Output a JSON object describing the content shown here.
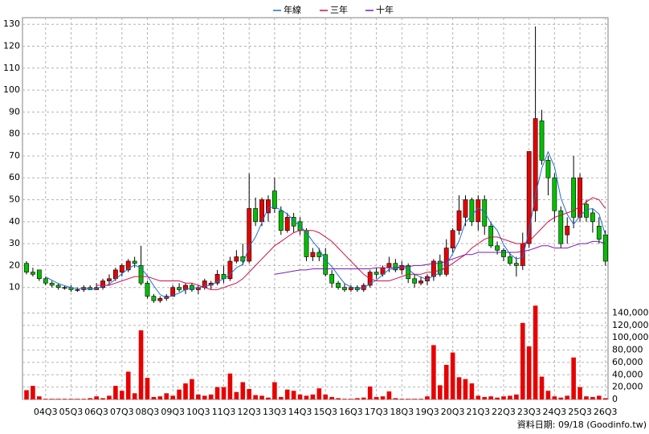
{
  "chart_data": {
    "type": "candlestick",
    "categories": [
      null,
      null,
      null,
      "04Q3",
      null,
      null,
      null,
      "05Q3",
      null,
      null,
      null,
      "06Q3",
      null,
      null,
      null,
      "07Q3",
      null,
      null,
      null,
      "08Q3",
      null,
      null,
      null,
      "09Q3",
      null,
      null,
      null,
      "10Q3",
      null,
      null,
      null,
      "11Q3",
      null,
      null,
      null,
      "12Q3",
      null,
      null,
      null,
      "13Q3",
      null,
      null,
      null,
      "14Q3",
      null,
      null,
      null,
      "15Q3",
      null,
      null,
      null,
      "16Q3",
      null,
      null,
      null,
      "17Q3",
      null,
      null,
      null,
      "18Q3",
      null,
      null,
      null,
      "19Q3",
      null,
      null,
      null,
      "20Q3",
      null,
      null,
      null,
      "21Q3",
      null,
      null,
      null,
      "22Q3",
      null,
      null,
      null,
      "23Q3",
      null,
      null,
      null,
      "24Q3",
      null,
      null,
      null,
      "25Q3",
      null,
      null,
      null,
      "26Q3"
    ],
    "open": [
      21,
      17,
      18,
      14,
      12,
      11,
      10,
      10,
      9,
      9,
      10,
      9,
      10,
      13,
      14,
      17,
      18,
      22,
      20,
      12,
      6,
      4,
      5,
      6,
      10,
      9,
      11,
      9,
      10,
      11,
      12,
      16,
      14,
      22,
      24,
      22,
      46,
      40,
      44,
      54,
      45,
      36,
      42,
      40,
      36,
      24,
      26,
      25,
      16,
      12,
      10,
      9,
      10,
      9,
      11,
      17,
      16,
      19,
      21,
      18,
      20,
      14,
      12,
      13,
      15,
      22,
      16,
      28,
      36,
      42,
      50,
      40,
      50,
      38,
      29,
      27,
      24,
      21,
      20,
      30,
      45,
      86,
      68,
      60,
      45,
      34,
      60,
      42,
      48,
      44,
      38,
      34
    ],
    "high": [
      22,
      19,
      18,
      15,
      13,
      12,
      11,
      11,
      10,
      11,
      11,
      12,
      14,
      16,
      19,
      21,
      23,
      24,
      29,
      13,
      7,
      6,
      7,
      11,
      12,
      12,
      12,
      11,
      14,
      13,
      18,
      20,
      24,
      27,
      30,
      62,
      51,
      51,
      52,
      60,
      47,
      44,
      44,
      42,
      37,
      28,
      28,
      28,
      18,
      13,
      12,
      11,
      11,
      12,
      18,
      19,
      20,
      24,
      23,
      22,
      21,
      16,
      15,
      16,
      23,
      25,
      32,
      37,
      52,
      52,
      51,
      52,
      52,
      40,
      31,
      28,
      26,
      24,
      35,
      72,
      129,
      91,
      70,
      62,
      47,
      42,
      70,
      62,
      50,
      46,
      42,
      36
    ],
    "low": [
      16,
      15,
      13,
      11,
      10,
      9,
      9,
      8,
      8,
      8,
      9,
      9,
      9,
      11,
      13,
      15,
      17,
      19,
      11,
      5,
      3,
      3,
      4,
      6,
      8,
      7,
      8,
      7,
      9,
      9,
      11,
      12,
      13,
      21,
      20,
      21,
      38,
      38,
      40,
      44,
      34,
      35,
      35,
      34,
      22,
      22,
      22,
      15,
      10,
      9,
      8,
      8,
      8,
      8,
      10,
      14,
      15,
      17,
      17,
      16,
      12,
      10,
      11,
      11,
      13,
      15,
      15,
      26,
      34,
      38,
      38,
      36,
      34,
      28,
      25,
      22,
      20,
      15,
      18,
      28,
      40,
      66,
      52,
      40,
      28,
      30,
      37,
      40,
      40,
      35,
      30,
      20
    ],
    "close": [
      17,
      16,
      14,
      12,
      11,
      10,
      10,
      9,
      9,
      10,
      9,
      10,
      13,
      14,
      18,
      20,
      22,
      21,
      12,
      6,
      4,
      5,
      6,
      10,
      9,
      11,
      9,
      10,
      13,
      12,
      16,
      14,
      22,
      24,
      22,
      46,
      40,
      50,
      50,
      46,
      36,
      42,
      38,
      36,
      24,
      26,
      24,
      16,
      12,
      10,
      9,
      10,
      9,
      11,
      17,
      16,
      19,
      21,
      18,
      20,
      14,
      12,
      13,
      15,
      22,
      16,
      28,
      36,
      45,
      50,
      40,
      50,
      38,
      29,
      27,
      24,
      21,
      20,
      30,
      72,
      87,
      68,
      60,
      45,
      30,
      38,
      42,
      60,
      42,
      40,
      32,
      22
    ],
    "up_color": "#e80000",
    "down_color": "#00c000",
    "ylim": [
      0,
      133
    ],
    "yticks": [
      10,
      20,
      30,
      40,
      50,
      60,
      70,
      80,
      90,
      100,
      110,
      120,
      130
    ],
    "grid": true,
    "series": [
      {
        "name": "年線",
        "color": "#1e6fd6",
        "values": [
          null,
          null,
          null,
          14.8,
          13.3,
          11.8,
          10.8,
          10,
          9.5,
          9.5,
          9.3,
          9.5,
          10.5,
          11.5,
          13.8,
          16.3,
          18.5,
          20.3,
          18.8,
          15.3,
          10.8,
          6.8,
          5.3,
          6.3,
          7.5,
          9,
          9.8,
          9.8,
          10.8,
          11,
          12.8,
          13.8,
          16,
          19,
          20.5,
          28.5,
          33,
          39.5,
          46.5,
          46.5,
          45.5,
          43.5,
          40.5,
          38,
          35,
          31,
          27.5,
          22.5,
          19.5,
          15.5,
          11.8,
          10.3,
          9.5,
          9.8,
          11.8,
          13.3,
          15.8,
          18.3,
          18.5,
          19.5,
          18.3,
          16,
          14.8,
          13.5,
          15.5,
          16.5,
          20.3,
          25.5,
          31.3,
          39.8,
          42.8,
          46.3,
          44.5,
          39.3,
          36,
          29.5,
          25.3,
          23,
          23.8,
          35.8,
          52.3,
          64.3,
          71.8,
          65,
          50.8,
          43.3,
          38.8,
          42.5,
          45.5,
          46,
          43.5,
          34
        ]
      },
      {
        "name": "三年",
        "color": "#d0104c",
        "values": [
          null,
          null,
          null,
          null,
          null,
          null,
          null,
          null,
          null,
          null,
          null,
          11,
          11,
          11,
          12,
          13,
          14,
          15,
          15,
          15,
          14,
          13,
          13,
          13,
          13,
          12,
          12,
          11,
          10,
          9,
          9,
          10,
          11,
          12,
          14,
          17,
          20,
          23,
          26,
          29,
          31,
          33,
          35,
          36,
          36,
          36,
          35,
          33,
          31,
          28,
          25,
          22,
          19,
          16,
          14,
          13,
          13,
          13,
          14,
          15,
          16,
          16,
          16,
          17,
          17,
          18,
          19,
          21,
          23,
          25,
          28,
          30,
          32,
          33,
          33,
          32,
          31,
          30,
          30,
          31,
          34,
          37,
          40,
          42,
          43,
          44,
          45,
          47,
          49,
          51,
          50,
          46
        ]
      },
      {
        "name": "十年",
        "color": "#7a1cb0",
        "values": [
          null,
          null,
          null,
          null,
          null,
          null,
          null,
          null,
          null,
          null,
          null,
          null,
          null,
          null,
          null,
          null,
          null,
          null,
          null,
          null,
          null,
          null,
          null,
          null,
          null,
          null,
          null,
          null,
          null,
          null,
          null,
          null,
          null,
          null,
          null,
          null,
          null,
          null,
          null,
          16,
          16.5,
          17,
          17.5,
          18,
          18,
          18.5,
          18.5,
          18.5,
          18.5,
          18.5,
          18.5,
          18.5,
          18.5,
          18.5,
          18.5,
          19,
          19,
          19,
          19,
          19.5,
          19.5,
          20,
          20,
          20.5,
          21,
          21,
          22,
          23,
          24,
          25,
          25,
          26,
          26,
          26,
          26,
          26,
          26,
          26,
          26.5,
          27,
          28,
          29,
          29,
          28,
          28,
          28,
          29,
          30,
          30,
          31,
          31,
          30
        ]
      }
    ],
    "volume": {
      "color": "#e80000",
      "values": [
        15000,
        22000,
        5000,
        1000,
        1000,
        1000,
        1000,
        1000,
        1000,
        1000,
        2000,
        5000,
        2000,
        6000,
        22000,
        14000,
        45000,
        10000,
        112000,
        35000,
        4000,
        5000,
        10000,
        6000,
        16000,
        26000,
        33000,
        8000,
        6000,
        8000,
        20000,
        20000,
        42000,
        12000,
        28000,
        17000,
        7000,
        6000,
        3000,
        28000,
        4000,
        16000,
        14000,
        8000,
        6000,
        8000,
        18000,
        8000,
        4000,
        2000,
        1000,
        1000,
        2000,
        3000,
        21000,
        4000,
        5000,
        13000,
        2000,
        1000,
        1000,
        1000,
        1000,
        5000,
        88000,
        23000,
        56000,
        76000,
        36000,
        33000,
        26000,
        6000,
        4000,
        5000,
        3000,
        5000,
        6000,
        8000,
        124000,
        86000,
        152000,
        37000,
        14000,
        5000,
        3000,
        6000,
        68000,
        20000,
        5000,
        4000,
        6000,
        2000
      ],
      "ylim": [
        0,
        155000
      ],
      "yticks": [
        0,
        {
          "value": 20000,
          "label": "20,000"
        },
        {
          "value": 40000,
          "label": "40,000"
        },
        {
          "value": 60000,
          "label": "60,000"
        },
        {
          "value": 80000,
          "label": "80,000"
        },
        {
          "value": 100000,
          "label": "100,000"
        },
        {
          "value": 120000,
          "label": "120,000"
        },
        {
          "value": 140000,
          "label": "140,000"
        }
      ]
    },
    "footer": "資料日期: 09/18 (Goodinfo.tw)"
  }
}
